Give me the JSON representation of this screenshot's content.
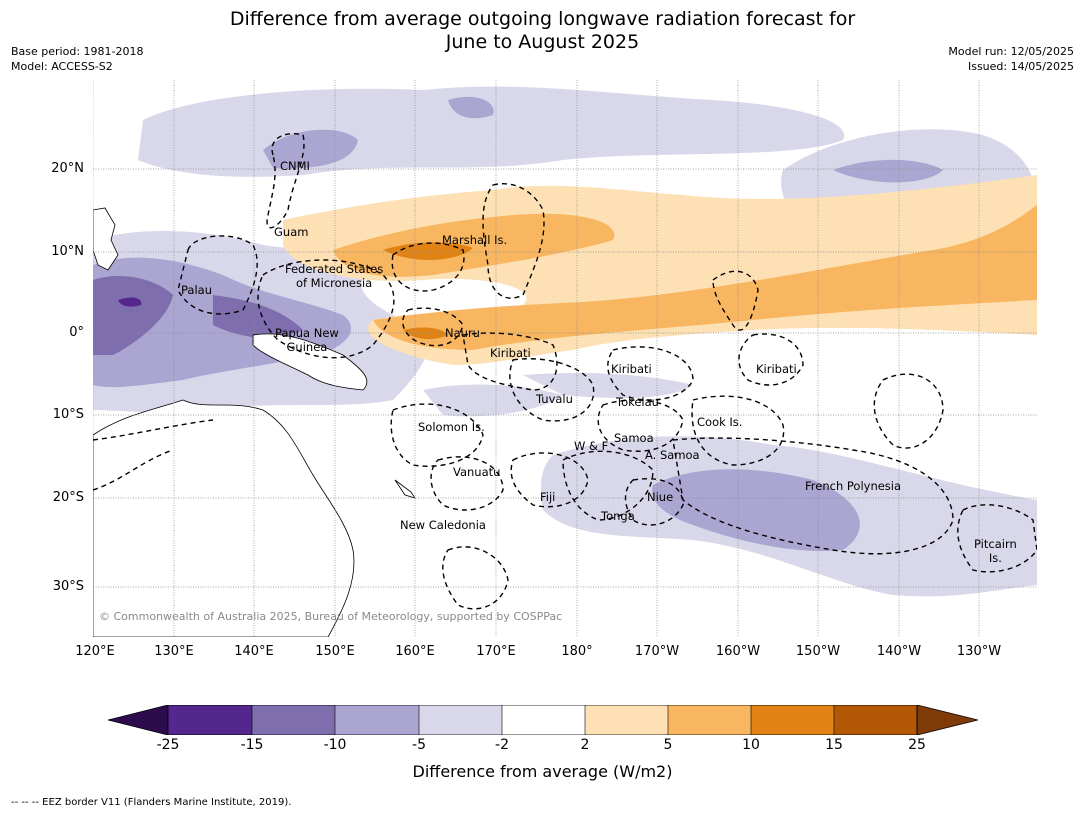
{
  "title_line1": "Difference from average outgoing longwave radiation forecast for",
  "title_line2": "June to August 2025",
  "meta_left": {
    "base_period": "Base period: 1981-2018",
    "model": "Model: ACCESS-S2"
  },
  "meta_right": {
    "model_run": "Model run: 12/05/2025",
    "issued": "Issued: 14/05/2025"
  },
  "lat_labels": [
    "20°N",
    "10°N",
    "0°",
    "10°S",
    "20°S",
    "30°S"
  ],
  "lon_labels": [
    "120°E",
    "130°E",
    "140°E",
    "150°E",
    "160°E",
    "170°E",
    "180°",
    "170°W",
    "160°W",
    "150°W",
    "140°W",
    "130°W"
  ],
  "regions": {
    "cnmi": "CNMI",
    "guam": "Guam",
    "marshall": "Marshall Is.",
    "fsm_1": "Federated States",
    "fsm_2": "of Micronesia",
    "palau": "Palau",
    "png_1": "Papua New",
    "png_2": "Guinea",
    "nauru": "Nauru",
    "kiribati_w": "Kiribati",
    "kiribati_c": "Kiribati",
    "kiribati_e": "Kiribati",
    "tuvalu": "Tuvalu",
    "tokelau": "Tokelau",
    "cook": "Cook Is.",
    "solomon": "Solomon Is.",
    "samoa": "Samoa",
    "wf": "W & F",
    "asamoa": "A. Samoa",
    "vanuatu": "Vanuatu",
    "fiji": "Fiji",
    "niue": "Niue",
    "tonga": "Tonga",
    "french_polynesia": "French Polynesia",
    "new_caledonia": "New Caledonia",
    "pitcairn_1": "Pitcairn",
    "pitcairn_2": "Is."
  },
  "copyright": "© Commonwealth of Australia 2025, Bureau of Meteorology, supported by COSPPac",
  "colorbar": {
    "ticks": [
      "-25",
      "-15",
      "-10",
      "-5",
      "-2",
      "2",
      "5",
      "10",
      "15",
      "25"
    ],
    "colors": [
      "#2d0c4e",
      "#54278f",
      "#7e6eae",
      "#aba6d1",
      "#d8d8ea",
      "#ffffff",
      "#fde0b4",
      "#f9b661",
      "#e08214",
      "#b35806",
      "#7f3b08"
    ],
    "title": "Difference from average (W/m2)"
  },
  "footnote": "--  --  -- EEZ border V11 (Flanders Marine Institute, 2019)."
}
